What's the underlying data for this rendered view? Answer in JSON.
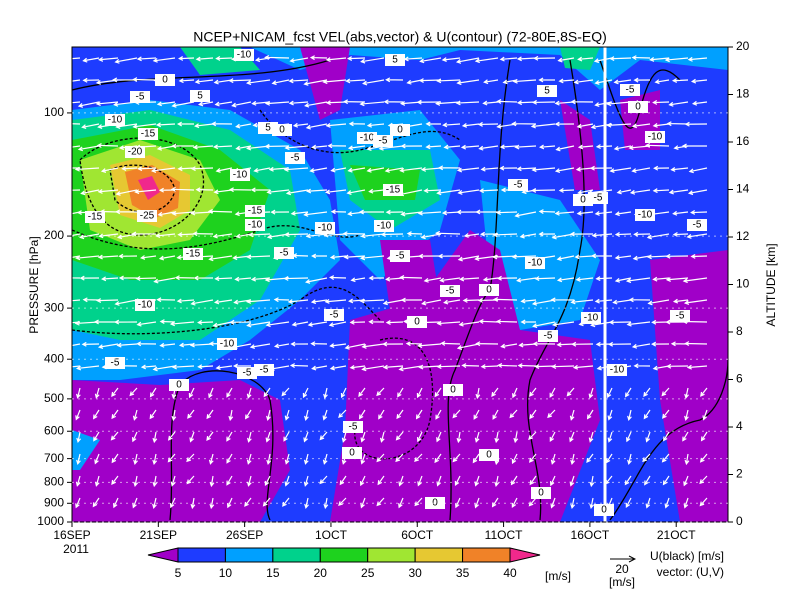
{
  "chart_data": {
    "type": "time-height",
    "title": "NCEP+NICAM_fcst VEL(abs,vector) & U(contour)  (72-80E,8S-EQ)",
    "xlim": [
      0,
      38
    ],
    "xticks": [
      {
        "value": 0,
        "label": "16SEP"
      },
      {
        "value": 5,
        "label": "21SEP"
      },
      {
        "value": 10,
        "label": "26SEP"
      },
      {
        "value": 15,
        "label": "1OCT"
      },
      {
        "value": 20,
        "label": "6OCT"
      },
      {
        "value": 25,
        "label": "11OCT"
      },
      {
        "value": 30,
        "label": "16OCT"
      },
      {
        "value": 35,
        "label": "21OCT"
      }
    ],
    "year_label": "2011",
    "ylabel": "PRESSURE [hPa]",
    "y_log": true,
    "ylim": [
      1000,
      69
    ],
    "yticks": [
      100,
      200,
      300,
      400,
      500,
      600,
      700,
      800,
      900,
      1000
    ],
    "y2label": "ALTITUDE [km]",
    "y2lim": [
      0,
      20
    ],
    "y2ticks": [
      0,
      2,
      4,
      6,
      8,
      10,
      12,
      14,
      16,
      18,
      20
    ],
    "colorbar": {
      "levels": [
        5,
        10,
        15,
        20,
        25,
        30,
        35,
        40
      ],
      "colors": [
        "#a000c8",
        "#1e3cff",
        "#00a0ff",
        "#00d28c",
        "#1ed21e",
        "#a0e632",
        "#e6c832",
        "#f08228",
        "#f0288c"
      ],
      "unit": "[m/s]"
    },
    "vector_scale": 20,
    "vector_unit": "[m/s]",
    "contour_note": "U(black) [m/s]",
    "vector_note": "vector: (U,V)",
    "contour_labels": [
      "0",
      "-5",
      "5",
      "-10",
      "-15",
      "-20",
      "-25",
      "-15",
      "-15",
      "-15",
      "-10",
      "-5",
      "-10",
      "5",
      "0",
      "-10",
      "-5",
      "0",
      "-15",
      "-10",
      "-10",
      "-5",
      "-5",
      "-5",
      "-5",
      "0",
      "-10",
      "-5",
      "5",
      "5",
      "-10",
      "0",
      "-5",
      "0",
      "-10",
      "-10",
      "-5",
      "-5",
      "-5",
      "-10",
      "-5",
      "0",
      "-5",
      "0",
      "0",
      "0",
      "0",
      "-10",
      "-5",
      "0",
      "-10",
      "-5",
      "0",
      "-10",
      "0",
      "-5"
    ]
  }
}
